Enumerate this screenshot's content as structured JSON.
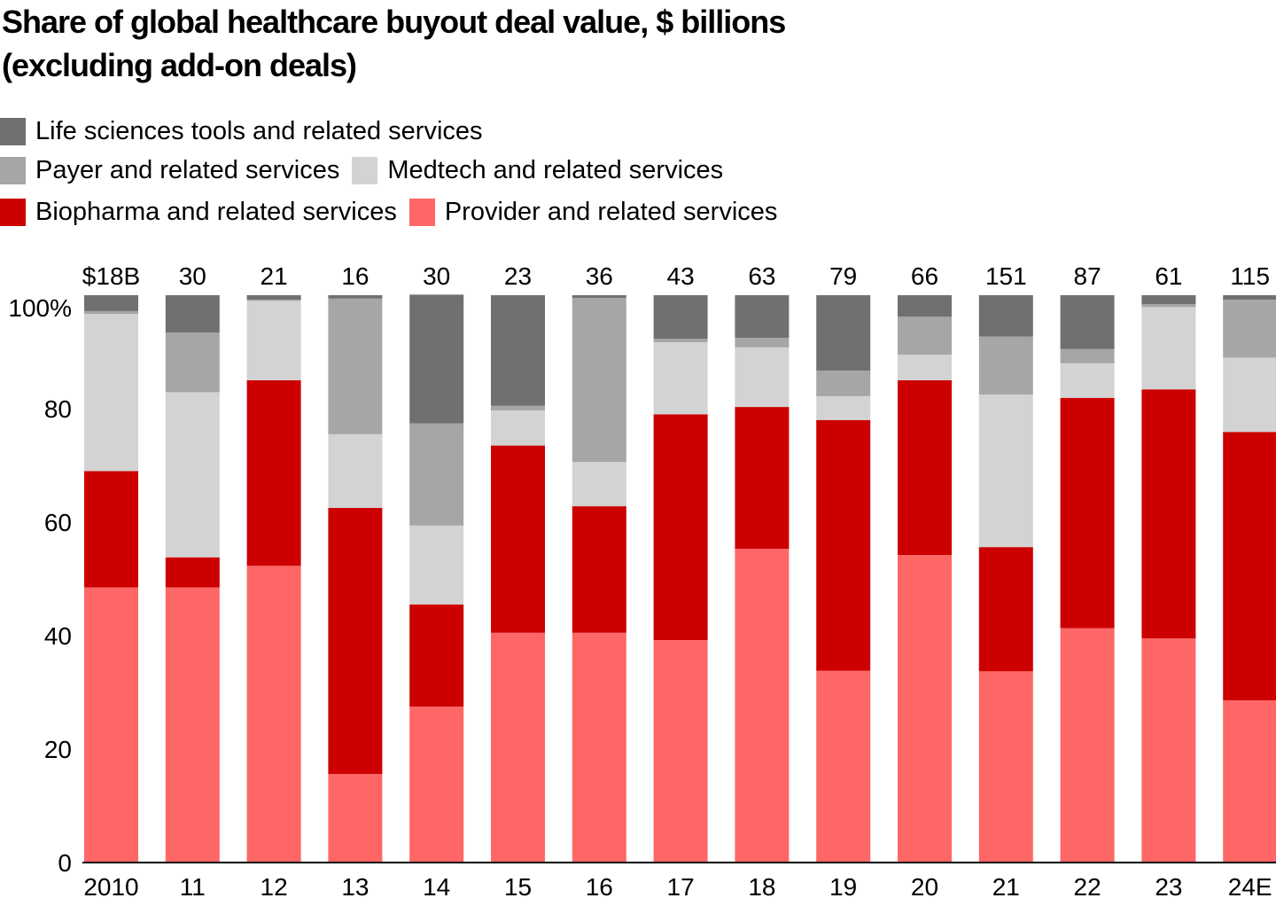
{
  "title_lines": [
    "Share of global healthcare buyout deal value, $ billions",
    "(excluding add-on deals)"
  ],
  "legend": {
    "rows": [
      [
        {
          "key": "life_sciences",
          "label": "Life sciences tools and related services",
          "color": "#707070"
        }
      ],
      [
        {
          "key": "payer",
          "label": "Payer and related services",
          "color": "#a6a6a4"
        },
        {
          "key": "medtech",
          "label": "Medtech and related services",
          "color": "#d3d3d3"
        }
      ],
      [
        {
          "key": "biopharma",
          "label": "Biopharma and related services",
          "color": "#cc0000"
        },
        {
          "key": "provider",
          "label": "Provider and related services",
          "color": "#ff6666"
        }
      ]
    ]
  },
  "chart_data": {
    "type": "bar",
    "stacked": true,
    "normalized": true,
    "title": "Share of global healthcare buyout deal value, $ billions (excluding add-on deals)",
    "xlabel": "",
    "ylabel": "",
    "ylim": [
      0,
      100
    ],
    "yticks": [
      0,
      20,
      40,
      60,
      80,
      100
    ],
    "ytick_labels": [
      "0",
      "20",
      "40",
      "60",
      "80",
      "100%"
    ],
    "grid": false,
    "legend_position": "top-left",
    "categories": [
      "2010",
      "11",
      "12",
      "13",
      "14",
      "15",
      "16",
      "17",
      "18",
      "19",
      "20",
      "21",
      "22",
      "23",
      "24E"
    ],
    "totals": [
      18,
      30,
      21,
      16,
      30,
      23,
      36,
      43,
      63,
      79,
      66,
      151,
      87,
      61,
      115
    ],
    "total_labels": [
      "$18B",
      "30",
      "21",
      "16",
      "30",
      "23",
      "36",
      "43",
      "63",
      "79",
      "66",
      "151",
      "87",
      "61",
      "115"
    ],
    "series": [
      {
        "name": "Provider and related services",
        "color": "#ff6666",
        "values": [
          48.5,
          48.5,
          52.3,
          15.6,
          27.5,
          40.5,
          40.5,
          39.2,
          55.3,
          33.8,
          54.2,
          33.7,
          41.3,
          39.5,
          28.6
        ]
      },
      {
        "name": "Biopharma and related services",
        "color": "#cc0000",
        "values": [
          20.5,
          5.3,
          32.7,
          46.9,
          18.0,
          33.0,
          22.3,
          39.8,
          25.0,
          44.2,
          30.8,
          21.9,
          40.6,
          43.9,
          47.3
        ]
      },
      {
        "name": "Medtech and related services",
        "color": "#d3d3d3",
        "values": [
          27.7,
          29.1,
          14.0,
          13.0,
          13.9,
          6.2,
          7.8,
          12.7,
          10.5,
          4.2,
          4.5,
          26.9,
          6.1,
          14.5,
          13.1
        ]
      },
      {
        "name": "Payer and related services",
        "color": "#a6a6a4",
        "values": [
          0.5,
          10.5,
          0.2,
          23.9,
          18.0,
          0.8,
          28.9,
          0.6,
          1.7,
          4.5,
          6.7,
          10.2,
          2.5,
          0.5,
          10.2
        ]
      },
      {
        "name": "Life sciences tools and related services",
        "color": "#707070",
        "values": [
          2.8,
          6.6,
          0.8,
          0.6,
          22.7,
          19.5,
          0.5,
          7.7,
          7.5,
          13.3,
          3.8,
          7.3,
          9.5,
          1.6,
          0.8
        ]
      }
    ]
  }
}
